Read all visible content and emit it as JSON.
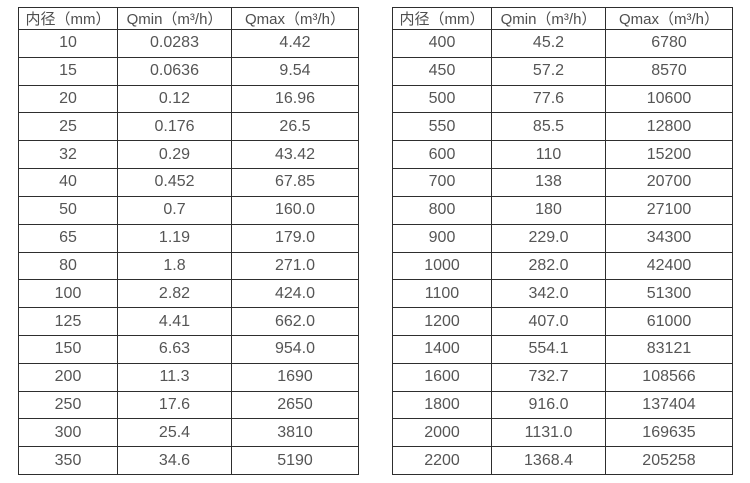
{
  "colors": {
    "border": "#2e2e2e",
    "text": "#555555",
    "background": "#ffffff"
  },
  "tables": [
    {
      "name": "flow-table-small-diameters",
      "headers": [
        "内径（mm）",
        "Qmin（m³/h）",
        "Qmax（m³/h）"
      ],
      "rows": [
        [
          "10",
          "0.0283",
          "4.42"
        ],
        [
          "15",
          "0.0636",
          "9.54"
        ],
        [
          "20",
          "0.12",
          "16.96"
        ],
        [
          "25",
          "0.176",
          "26.5"
        ],
        [
          "32",
          "0.29",
          "43.42"
        ],
        [
          "40",
          "0.452",
          "67.85"
        ],
        [
          "50",
          "0.7",
          "160.0"
        ],
        [
          "65",
          "1.19",
          "179.0"
        ],
        [
          "80",
          "1.8",
          "271.0"
        ],
        [
          "100",
          "2.82",
          "424.0"
        ],
        [
          "125",
          "4.41",
          "662.0"
        ],
        [
          "150",
          "6.63",
          "954.0"
        ],
        [
          "200",
          "11.3",
          "1690"
        ],
        [
          "250",
          "17.6",
          "2650"
        ],
        [
          "300",
          "25.4",
          "3810"
        ],
        [
          "350",
          "34.6",
          "5190"
        ]
      ]
    },
    {
      "name": "flow-table-large-diameters",
      "headers": [
        "内径（mm）",
        "Qmin（m³/h）",
        "Qmax（m³/h）"
      ],
      "rows": [
        [
          "400",
          "45.2",
          "6780"
        ],
        [
          "450",
          "57.2",
          "8570"
        ],
        [
          "500",
          "77.6",
          "10600"
        ],
        [
          "550",
          "85.5",
          "12800"
        ],
        [
          "600",
          "110",
          "15200"
        ],
        [
          "700",
          "138",
          "20700"
        ],
        [
          "800",
          "180",
          "27100"
        ],
        [
          "900",
          "229.0",
          "34300"
        ],
        [
          "1000",
          "282.0",
          "42400"
        ],
        [
          "1100",
          "342.0",
          "51300"
        ],
        [
          "1200",
          "407.0",
          "61000"
        ],
        [
          "1400",
          "554.1",
          "83121"
        ],
        [
          "1600",
          "732.7",
          "108566"
        ],
        [
          "1800",
          "916.0",
          "137404"
        ],
        [
          "2000",
          "1131.0",
          "169635"
        ],
        [
          "2200",
          "1368.4",
          "205258"
        ]
      ]
    }
  ]
}
